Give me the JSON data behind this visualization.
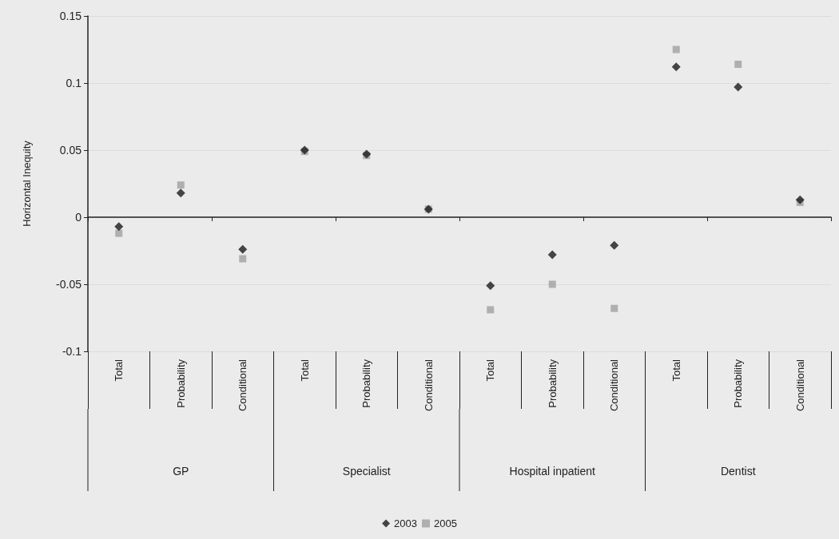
{
  "chart_data": {
    "type": "scatter",
    "ylabel": "Horizontal Inequity",
    "categories": [
      "Total",
      "Probability",
      "Conditional",
      "Total",
      "Probability",
      "Conditional",
      "Total",
      "Probability",
      "Conditional",
      "Total",
      "Probability",
      "Conditional"
    ],
    "annotations": [
      "GP",
      "Specialist",
      "Hospital inpatient",
      "Dentist"
    ],
    "series": [
      {
        "name": "2003",
        "color": "#1a1a1a",
        "marker": "diamond",
        "values": [
          -0.007,
          0.018,
          -0.024,
          0.05,
          0.047,
          0.006,
          -0.051,
          -0.028,
          -0.021,
          0.112,
          0.097,
          0.013
        ]
      },
      {
        "name": "2005",
        "color": "#a0a0a0",
        "marker": "square",
        "values": [
          -0.012,
          0.024,
          -0.031,
          0.049,
          0.046,
          0.006,
          -0.069,
          -0.05,
          -0.068,
          0.125,
          0.114,
          0.011
        ]
      }
    ],
    "ylim": [
      -0.1,
      0.15
    ],
    "yticks": [
      -0.1,
      -0.05,
      0,
      0.05,
      0.1,
      0.15
    ],
    "grid": "y",
    "legend": "bottom"
  }
}
